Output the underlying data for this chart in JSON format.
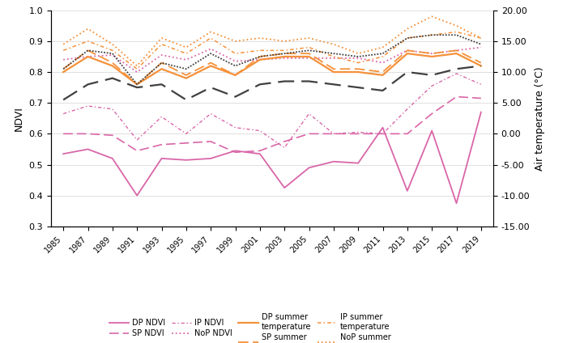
{
  "years": [
    1985,
    1987,
    1989,
    1991,
    1993,
    1995,
    1997,
    1999,
    2001,
    2003,
    2005,
    2007,
    2009,
    2011,
    2013,
    2015,
    2017,
    2019
  ],
  "DP_NDVI": [
    0.535,
    0.55,
    0.52,
    0.4,
    0.52,
    0.515,
    0.52,
    0.545,
    0.535,
    0.425,
    0.49,
    0.51,
    0.505,
    0.62,
    0.415,
    0.61,
    0.375,
    0.67
  ],
  "SP_NDVI": [
    0.6,
    0.6,
    0.595,
    0.545,
    0.565,
    0.57,
    0.575,
    0.54,
    0.545,
    0.575,
    0.6,
    0.6,
    0.6,
    0.6,
    0.6,
    0.665,
    0.72,
    0.715
  ],
  "IP_NDVI": [
    0.665,
    0.69,
    0.68,
    0.58,
    0.655,
    0.6,
    0.665,
    0.62,
    0.61,
    0.555,
    0.665,
    0.6,
    0.605,
    0.6,
    0.68,
    0.755,
    0.795,
    0.76
  ],
  "NoP_NDVI": [
    0.84,
    0.85,
    0.855,
    0.8,
    0.855,
    0.84,
    0.875,
    0.835,
    0.84,
    0.845,
    0.845,
    0.845,
    0.845,
    0.83,
    0.87,
    0.86,
    0.87,
    0.88
  ],
  "DP_temp": [
    10.0,
    12.5,
    11.0,
    8.0,
    10.5,
    9.0,
    11.0,
    9.5,
    12.0,
    12.5,
    12.5,
    10.0,
    10.0,
    9.5,
    13.0,
    12.5,
    13.0,
    11.0
  ],
  "SP_temp": [
    10.5,
    13.5,
    11.5,
    8.0,
    11.5,
    9.5,
    11.5,
    9.5,
    12.5,
    13.0,
    13.0,
    10.5,
    10.5,
    10.0,
    13.5,
    13.0,
    13.5,
    11.5
  ],
  "IP_temp": [
    13.5,
    15.0,
    13.5,
    10.5,
    14.5,
    13.0,
    15.5,
    13.0,
    13.5,
    13.5,
    14.0,
    12.5,
    11.5,
    12.5,
    15.5,
    16.0,
    16.5,
    15.5
  ],
  "NoP_temp": [
    14.5,
    17.0,
    14.5,
    11.0,
    15.5,
    14.0,
    16.5,
    15.0,
    15.5,
    15.0,
    15.5,
    14.5,
    13.0,
    14.0,
    17.0,
    19.0,
    17.5,
    15.5
  ],
  "Naryan_temp": [
    10.5,
    13.5,
    13.0,
    8.0,
    11.5,
    10.5,
    13.0,
    11.0,
    12.5,
    13.0,
    13.5,
    13.0,
    12.5,
    13.0,
    15.5,
    16.0,
    16.0,
    14.5
  ],
  "Cape_temp": [
    5.5,
    8.0,
    9.0,
    7.5,
    8.0,
    5.5,
    7.5,
    6.0,
    8.0,
    8.5,
    8.5,
    8.0,
    7.5,
    7.0,
    10.0,
    9.5,
    10.5,
    11.0
  ],
  "ndvi_ylim": [
    0.3,
    1.0
  ],
  "temp_ylim": [
    -15.0,
    20.0
  ],
  "ndvi_yticks": [
    0.3,
    0.4,
    0.5,
    0.6,
    0.7,
    0.8,
    0.9,
    1.0
  ],
  "temp_yticks": [
    -15.0,
    -10.0,
    -5.0,
    0.0,
    5.0,
    10.0,
    15.0,
    20.0
  ],
  "pink_color": "#D966A8",
  "orange_color": "#F5913A",
  "dark_color": "#404040",
  "bg_color": "#ffffff",
  "ylabel_left": "NDVI",
  "ylabel_right": "Air temperature (°C)"
}
